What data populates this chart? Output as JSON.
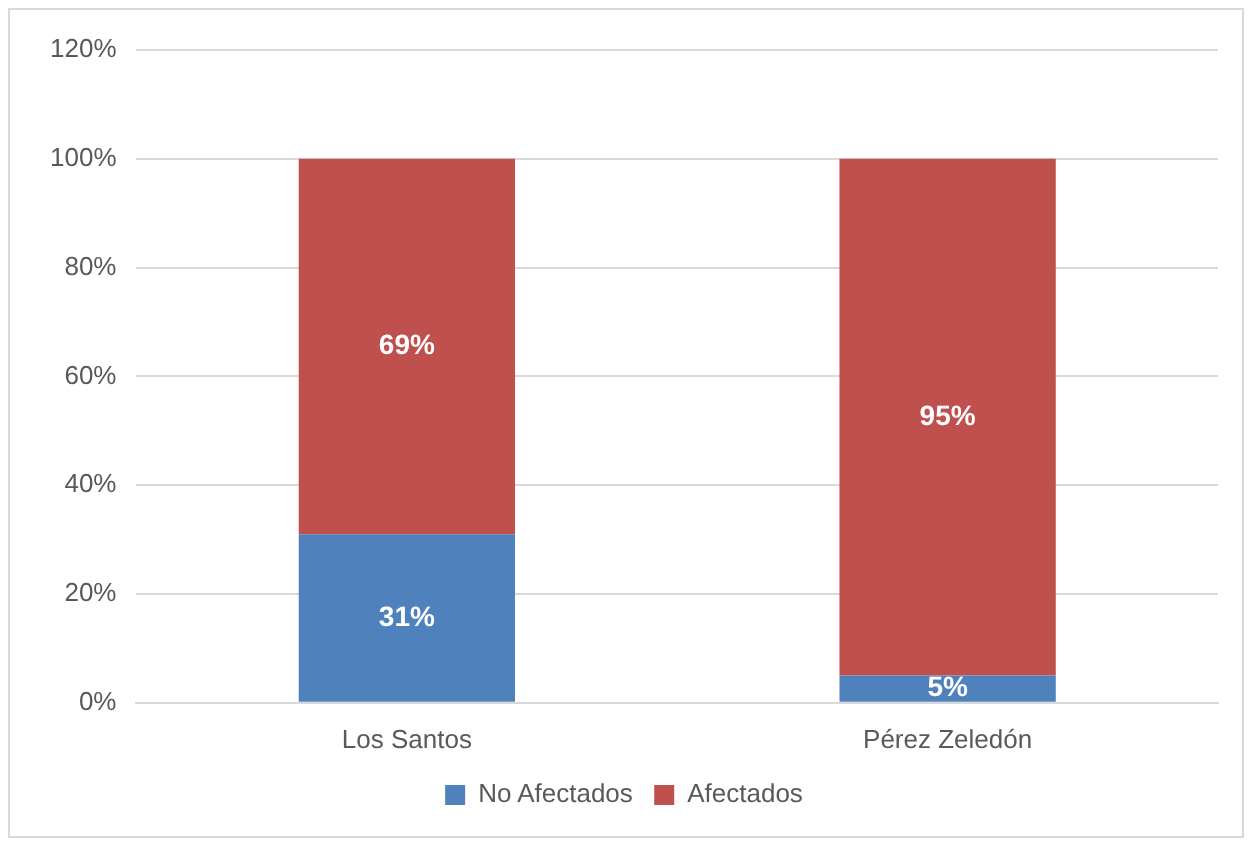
{
  "chart_data": {
    "type": "bar",
    "stacked": true,
    "categories": [
      "Los Santos",
      "Pérez Zeledón"
    ],
    "series": [
      {
        "name": "No Afectados",
        "color": "#4f81bd",
        "values": [
          31,
          5
        ],
        "value_labels": [
          "31%",
          "5%"
        ]
      },
      {
        "name": "Afectados",
        "color": "#c0504d",
        "values": [
          69,
          95
        ],
        "value_labels": [
          "69%",
          "95%"
        ]
      }
    ],
    "ylim": [
      0,
      120
    ],
    "yticks": [
      {
        "value": 0,
        "label": "0%"
      },
      {
        "value": 20,
        "label": "20%"
      },
      {
        "value": 40,
        "label": "40%"
      },
      {
        "value": 60,
        "label": "60%"
      },
      {
        "value": 80,
        "label": "80%"
      },
      {
        "value": 100,
        "label": "100%"
      },
      {
        "value": 120,
        "label": "120%"
      }
    ],
    "grid": "y",
    "legend": "bottom"
  }
}
